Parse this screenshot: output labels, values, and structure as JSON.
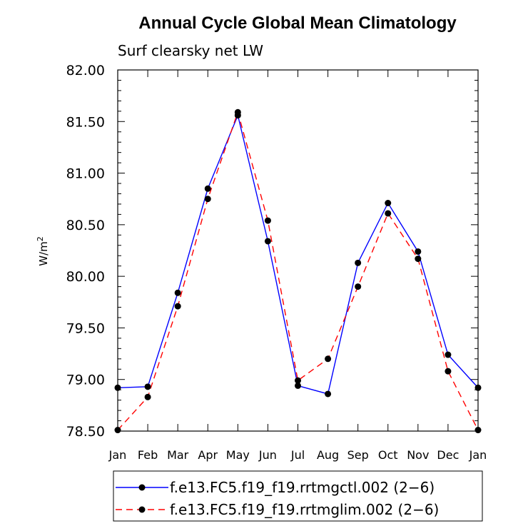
{
  "chart_data": {
    "type": "line",
    "title": "Annual Cycle Global Mean Climatology",
    "subtitle": "Surf clearsky net LW",
    "ylabel_base": "W/m",
    "ylabel_exp": "2",
    "xlabel": "",
    "ylim": [
      78.5,
      82.0
    ],
    "yticks": [
      "78.50",
      "79.00",
      "79.50",
      "80.00",
      "80.50",
      "81.00",
      "81.50",
      "82.00"
    ],
    "categories": [
      "Jan",
      "Feb",
      "Mar",
      "Apr",
      "May",
      "Jun",
      "Jul",
      "Aug",
      "Sep",
      "Oct",
      "Nov",
      "Dec",
      "Jan"
    ],
    "series": [
      {
        "name": "f.e13.FC5.f19_f19.rrtmgctl.002 (2−6)",
        "color": "#0000ff",
        "dash": "solid",
        "values": [
          78.92,
          78.93,
          79.84,
          80.85,
          81.56,
          80.34,
          78.94,
          78.86,
          80.13,
          80.71,
          80.24,
          79.24,
          78.92
        ]
      },
      {
        "name": "f.e13.FC5.f19_f19.rrtmglim.002 (2−6)",
        "color": "#ff0000",
        "dash": "dashed",
        "values": [
          78.51,
          78.83,
          79.71,
          80.75,
          81.59,
          80.54,
          78.99,
          79.2,
          79.9,
          80.61,
          80.17,
          79.08,
          78.51
        ]
      }
    ],
    "legend_position": "bottom"
  }
}
